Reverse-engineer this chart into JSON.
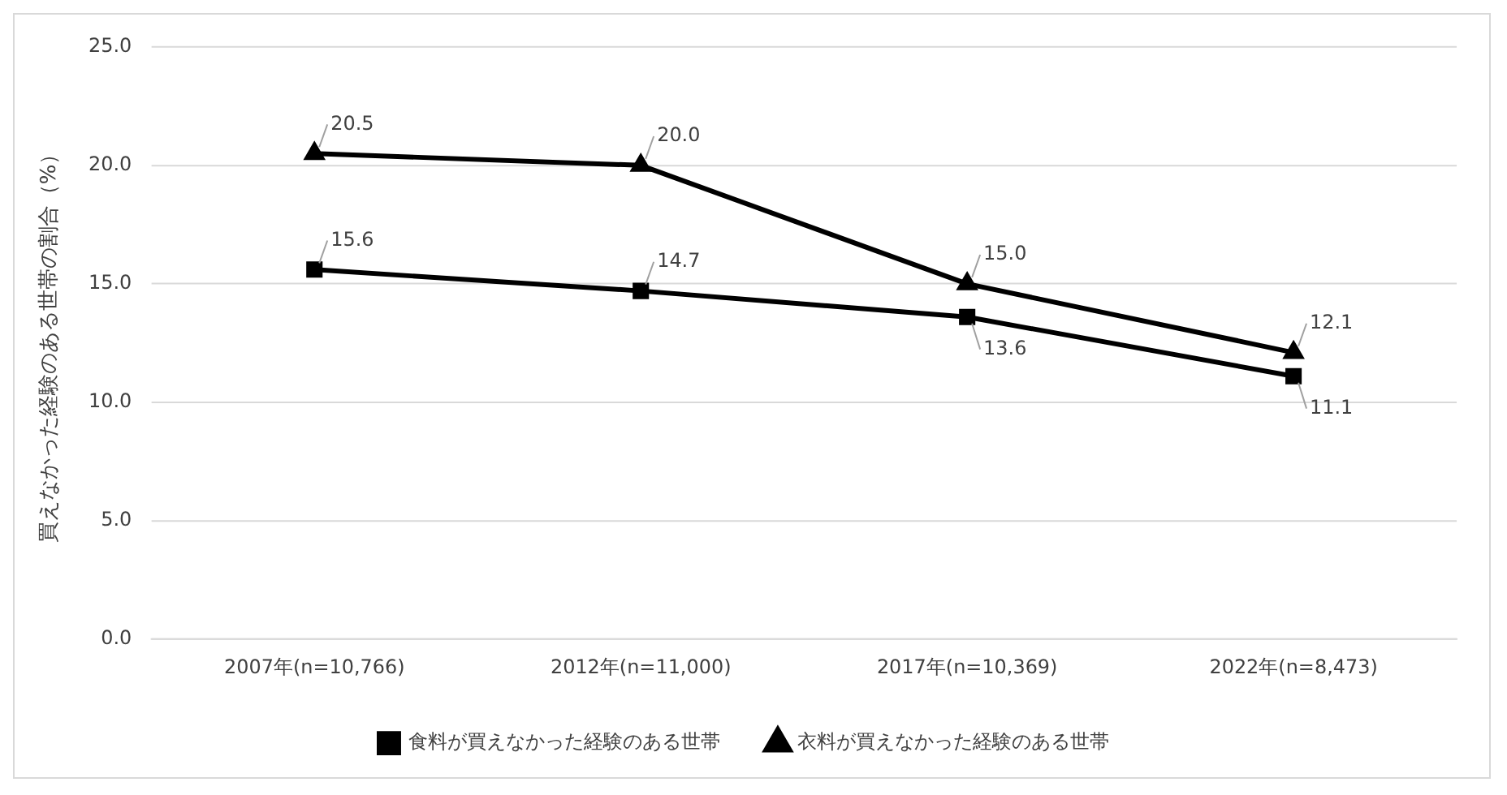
{
  "chart_data": {
    "type": "line",
    "ylabel": "買えなかった経験のある世帯の割合（%）",
    "categories": [
      "2007年(n=10,766)",
      "2012年(n=11,000)",
      "2017年(n=10,369)",
      "2022年(n=8,473)"
    ],
    "series": [
      {
        "name": "食料が買えなかった経験のある世帯",
        "color": "#000000",
        "marker": "square",
        "values": [
          15.6,
          14.7,
          13.6,
          11.1
        ],
        "value_labels": [
          "15.6",
          "14.7",
          "13.6",
          "11.1"
        ]
      },
      {
        "name": "衣料が買えなかった経験のある世帯",
        "color": "#000000",
        "marker": "triangle",
        "values": [
          20.5,
          20.0,
          15.0,
          12.1
        ],
        "value_labels": [
          "20.5",
          "20.0",
          "15.0",
          "12.1"
        ]
      }
    ],
    "ylim": [
      0,
      25
    ],
    "yticks": [
      {
        "value": 0,
        "label": "0.0"
      },
      {
        "value": 5,
        "label": "5.0"
      },
      {
        "value": 10,
        "label": "10.0"
      },
      {
        "value": 15,
        "label": "15.0"
      },
      {
        "value": 20,
        "label": "20.0"
      },
      {
        "value": 25,
        "label": "25.0"
      }
    ],
    "grid": "y",
    "legend": "bottom"
  }
}
